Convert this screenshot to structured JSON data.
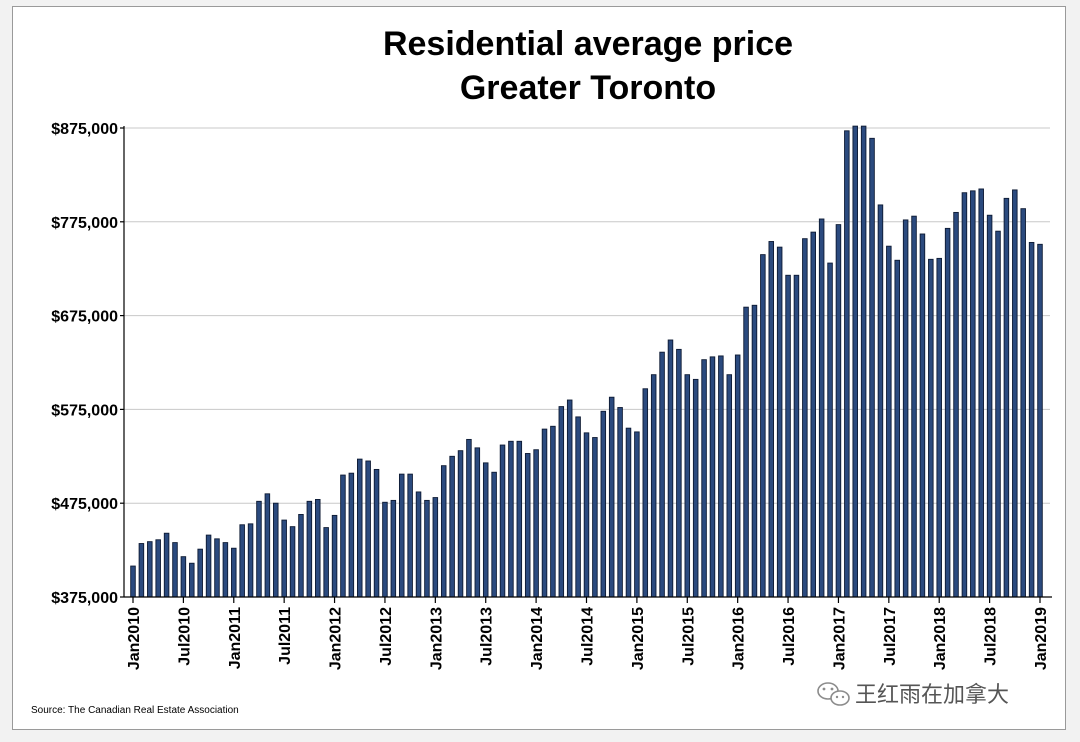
{
  "chart_data": {
    "type": "bar",
    "title": "Residential average price",
    "subtitle": "Greater Toronto",
    "source": "Source: The Canadian Real Estate Association",
    "xlabel": "",
    "ylabel": "",
    "ylim": [
      375000,
      875000
    ],
    "yticks": [
      375000,
      475000,
      575000,
      675000,
      775000,
      875000
    ],
    "ytick_labels": [
      "$375,000",
      "$475,000",
      "$575,000",
      "$675,000",
      "$775,000",
      "$875,000"
    ],
    "grid": true,
    "legend": "none",
    "xtick_labels": [
      "Jan2010",
      "Jul2010",
      "Jan2011",
      "Jul2011",
      "Jan2012",
      "Jul2012",
      "Jan2013",
      "Jul2013",
      "Jan2014",
      "Jul2014",
      "Jan2015",
      "Jul2015",
      "Jan2016",
      "Jul2016",
      "Jan2017",
      "Jul2017",
      "Jan2018",
      "Jul2018",
      "Jan2019"
    ],
    "categories": [
      "Jan2010",
      "Feb2010",
      "Mar2010",
      "Apr2010",
      "May2010",
      "Jun2010",
      "Jul2010",
      "Aug2010",
      "Sep2010",
      "Oct2010",
      "Nov2010",
      "Dec2010",
      "Jan2011",
      "Feb2011",
      "Mar2011",
      "Apr2011",
      "May2011",
      "Jun2011",
      "Jul2011",
      "Aug2011",
      "Sep2011",
      "Oct2011",
      "Nov2011",
      "Dec2011",
      "Jan2012",
      "Feb2012",
      "Mar2012",
      "Apr2012",
      "May2012",
      "Jun2012",
      "Jul2012",
      "Aug2012",
      "Sep2012",
      "Oct2012",
      "Nov2012",
      "Dec2012",
      "Jan2013",
      "Feb2013",
      "Mar2013",
      "Apr2013",
      "May2013",
      "Jun2013",
      "Jul2013",
      "Aug2013",
      "Sep2013",
      "Oct2013",
      "Nov2013",
      "Dec2013",
      "Jan2014",
      "Feb2014",
      "Mar2014",
      "Apr2014",
      "May2014",
      "Jun2014",
      "Jul2014",
      "Aug2014",
      "Sep2014",
      "Oct2014",
      "Nov2014",
      "Dec2014",
      "Jan2015",
      "Feb2015",
      "Mar2015",
      "Apr2015",
      "May2015",
      "Jun2015",
      "Jul2015",
      "Aug2015",
      "Sep2015",
      "Oct2015",
      "Nov2015",
      "Dec2015",
      "Jan2016",
      "Feb2016",
      "Mar2016",
      "Apr2016",
      "May2016",
      "Jun2016",
      "Jul2016",
      "Aug2016",
      "Sep2016",
      "Oct2016",
      "Nov2016",
      "Dec2016",
      "Jan2017",
      "Feb2017",
      "Mar2017",
      "Apr2017",
      "May2017",
      "Jun2017",
      "Jul2017",
      "Aug2017",
      "Sep2017",
      "Oct2017",
      "Nov2017",
      "Dec2017",
      "Jan2018",
      "Feb2018",
      "Mar2018",
      "Apr2018",
      "May2018",
      "Jun2018",
      "Jul2018",
      "Aug2018",
      "Sep2018",
      "Oct2018",
      "Nov2018",
      "Dec2018",
      "Jan2019"
    ],
    "values": [
      408000,
      432000,
      434000,
      436000,
      443000,
      433000,
      418000,
      411000,
      426000,
      441000,
      437000,
      433000,
      427000,
      452000,
      453000,
      477000,
      485000,
      475000,
      457000,
      450000,
      463000,
      477000,
      479000,
      449000,
      462000,
      505000,
      507000,
      522000,
      520000,
      511000,
      476000,
      478000,
      506000,
      506000,
      487000,
      478000,
      481000,
      515000,
      525000,
      531000,
      543000,
      534000,
      518000,
      508000,
      537000,
      541000,
      541000,
      528000,
      532000,
      554000,
      557000,
      578000,
      585000,
      567000,
      550000,
      545000,
      573000,
      588000,
      577000,
      555000,
      551000,
      597000,
      612000,
      636000,
      649000,
      639000,
      612000,
      607000,
      628000,
      631000,
      632000,
      612000,
      633000,
      684000,
      686000,
      740000,
      754000,
      748000,
      718000,
      718000,
      757000,
      764000,
      778000,
      731000,
      772000,
      872000,
      877000,
      877000,
      864000,
      793000,
      749000,
      734000,
      777000,
      781000,
      762000,
      735000,
      736000,
      768000,
      785000,
      806000,
      808000,
      810000,
      782000,
      765000,
      800000,
      809000,
      789000,
      753000,
      751000
    ]
  },
  "watermark": {
    "text": "王红雨在加拿大",
    "icon": "wechat-icon"
  }
}
